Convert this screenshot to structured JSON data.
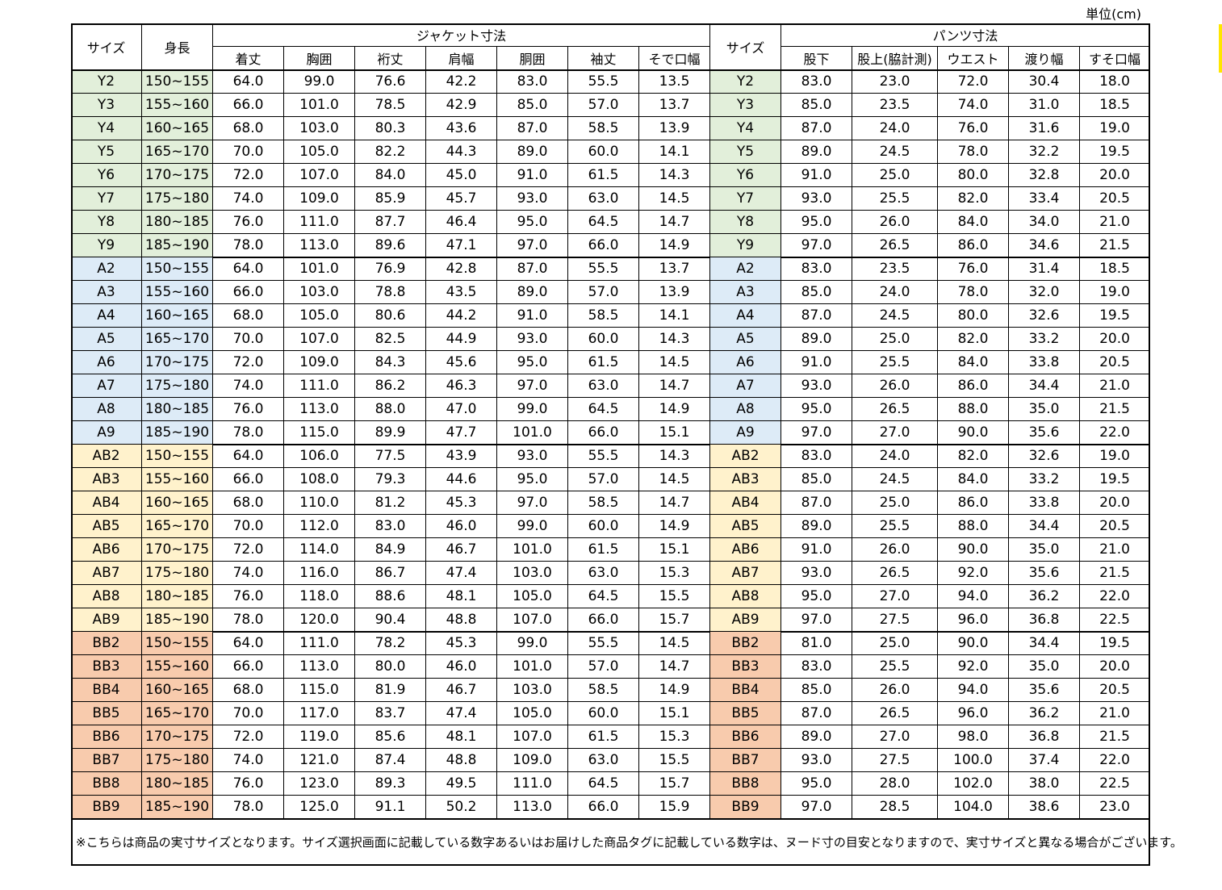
{
  "unit": "単位(cm)",
  "table": {
    "headers": {
      "size": "サイズ",
      "height": "身長",
      "jacket": "ジャケット寸法",
      "jacket_columns": [
        "着丈",
        "胸囲",
        "裄丈",
        "肩幅",
        "胴囲",
        "袖丈",
        "そで口幅"
      ],
      "size2": "サイズ",
      "pants": "パンツ寸法",
      "pants_columns": [
        "股下",
        "股上(脇計測)",
        "ウエスト",
        "渡り幅",
        "すそ口幅"
      ]
    },
    "groups": [
      {
        "color": "#e2efda",
        "rows": [
          [
            "Y2",
            "150~155",
            "64.0",
            "99.0",
            "76.6",
            "42.2",
            "83.0",
            "55.5",
            "13.5",
            "Y2",
            "83.0",
            "23.0",
            "72.0",
            "30.4",
            "18.0"
          ],
          [
            "Y3",
            "155~160",
            "66.0",
            "101.0",
            "78.5",
            "42.9",
            "85.0",
            "57.0",
            "13.7",
            "Y3",
            "85.0",
            "23.5",
            "74.0",
            "31.0",
            "18.5"
          ],
          [
            "Y4",
            "160~165",
            "68.0",
            "103.0",
            "80.3",
            "43.6",
            "87.0",
            "58.5",
            "13.9",
            "Y4",
            "87.0",
            "24.0",
            "76.0",
            "31.6",
            "19.0"
          ],
          [
            "Y5",
            "165~170",
            "70.0",
            "105.0",
            "82.2",
            "44.3",
            "89.0",
            "60.0",
            "14.1",
            "Y5",
            "89.0",
            "24.5",
            "78.0",
            "32.2",
            "19.5"
          ],
          [
            "Y6",
            "170~175",
            "72.0",
            "107.0",
            "84.0",
            "45.0",
            "91.0",
            "61.5",
            "14.3",
            "Y6",
            "91.0",
            "25.0",
            "80.0",
            "32.8",
            "20.0"
          ],
          [
            "Y7",
            "175~180",
            "74.0",
            "109.0",
            "85.9",
            "45.7",
            "93.0",
            "63.0",
            "14.5",
            "Y7",
            "93.0",
            "25.5",
            "82.0",
            "33.4",
            "20.5"
          ],
          [
            "Y8",
            "180~185",
            "76.0",
            "111.0",
            "87.7",
            "46.4",
            "95.0",
            "64.5",
            "14.7",
            "Y8",
            "95.0",
            "26.0",
            "84.0",
            "34.0",
            "21.0"
          ],
          [
            "Y9",
            "185~190",
            "78.0",
            "113.0",
            "89.6",
            "47.1",
            "97.0",
            "66.0",
            "14.9",
            "Y9",
            "97.0",
            "26.5",
            "86.0",
            "34.6",
            "21.5"
          ]
        ]
      },
      {
        "color": "#ddebf7",
        "rows": [
          [
            "A2",
            "150~155",
            "64.0",
            "101.0",
            "76.9",
            "42.8",
            "87.0",
            "55.5",
            "13.7",
            "A2",
            "83.0",
            "23.5",
            "76.0",
            "31.4",
            "18.5"
          ],
          [
            "A3",
            "155~160",
            "66.0",
            "103.0",
            "78.8",
            "43.5",
            "89.0",
            "57.0",
            "13.9",
            "A3",
            "85.0",
            "24.0",
            "78.0",
            "32.0",
            "19.0"
          ],
          [
            "A4",
            "160~165",
            "68.0",
            "105.0",
            "80.6",
            "44.2",
            "91.0",
            "58.5",
            "14.1",
            "A4",
            "87.0",
            "24.5",
            "80.0",
            "32.6",
            "19.5"
          ],
          [
            "A5",
            "165~170",
            "70.0",
            "107.0",
            "82.5",
            "44.9",
            "93.0",
            "60.0",
            "14.3",
            "A5",
            "89.0",
            "25.0",
            "82.0",
            "33.2",
            "20.0"
          ],
          [
            "A6",
            "170~175",
            "72.0",
            "109.0",
            "84.3",
            "45.6",
            "95.0",
            "61.5",
            "14.5",
            "A6",
            "91.0",
            "25.5",
            "84.0",
            "33.8",
            "20.5"
          ],
          [
            "A7",
            "175~180",
            "74.0",
            "111.0",
            "86.2",
            "46.3",
            "97.0",
            "63.0",
            "14.7",
            "A7",
            "93.0",
            "26.0",
            "86.0",
            "34.4",
            "21.0"
          ],
          [
            "A8",
            "180~185",
            "76.0",
            "113.0",
            "88.0",
            "47.0",
            "99.0",
            "64.5",
            "14.9",
            "A8",
            "95.0",
            "26.5",
            "88.0",
            "35.0",
            "21.5"
          ],
          [
            "A9",
            "185~190",
            "78.0",
            "115.0",
            "89.9",
            "47.7",
            "101.0",
            "66.0",
            "15.1",
            "A9",
            "97.0",
            "27.0",
            "90.0",
            "35.6",
            "22.0"
          ]
        ]
      },
      {
        "color": "#fff2cc",
        "rows": [
          [
            "AB2",
            "150~155",
            "64.0",
            "106.0",
            "77.5",
            "43.9",
            "93.0",
            "55.5",
            "14.3",
            "AB2",
            "83.0",
            "24.0",
            "82.0",
            "32.6",
            "19.0"
          ],
          [
            "AB3",
            "155~160",
            "66.0",
            "108.0",
            "79.3",
            "44.6",
            "95.0",
            "57.0",
            "14.5",
            "AB3",
            "85.0",
            "24.5",
            "84.0",
            "33.2",
            "19.5"
          ],
          [
            "AB4",
            "160~165",
            "68.0",
            "110.0",
            "81.2",
            "45.3",
            "97.0",
            "58.5",
            "14.7",
            "AB4",
            "87.0",
            "25.0",
            "86.0",
            "33.8",
            "20.0"
          ],
          [
            "AB5",
            "165~170",
            "70.0",
            "112.0",
            "83.0",
            "46.0",
            "99.0",
            "60.0",
            "14.9",
            "AB5",
            "89.0",
            "25.5",
            "88.0",
            "34.4",
            "20.5"
          ],
          [
            "AB6",
            "170~175",
            "72.0",
            "114.0",
            "84.9",
            "46.7",
            "101.0",
            "61.5",
            "15.1",
            "AB6",
            "91.0",
            "26.0",
            "90.0",
            "35.0",
            "21.0"
          ],
          [
            "AB7",
            "175~180",
            "74.0",
            "116.0",
            "86.7",
            "47.4",
            "103.0",
            "63.0",
            "15.3",
            "AB7",
            "93.0",
            "26.5",
            "92.0",
            "35.6",
            "21.5"
          ],
          [
            "AB8",
            "180~185",
            "76.0",
            "118.0",
            "88.6",
            "48.1",
            "105.0",
            "64.5",
            "15.5",
            "AB8",
            "95.0",
            "27.0",
            "94.0",
            "36.2",
            "22.0"
          ],
          [
            "AB9",
            "185~190",
            "78.0",
            "120.0",
            "90.4",
            "48.8",
            "107.0",
            "66.0",
            "15.7",
            "AB9",
            "97.0",
            "27.5",
            "96.0",
            "36.8",
            "22.5"
          ]
        ]
      },
      {
        "color": "#f8cbad",
        "rows": [
          [
            "BB2",
            "150~155",
            "64.0",
            "111.0",
            "78.2",
            "45.3",
            "99.0",
            "55.5",
            "14.5",
            "BB2",
            "81.0",
            "25.0",
            "90.0",
            "34.4",
            "19.5"
          ],
          [
            "BB3",
            "155~160",
            "66.0",
            "113.0",
            "80.0",
            "46.0",
            "101.0",
            "57.0",
            "14.7",
            "BB3",
            "83.0",
            "25.5",
            "92.0",
            "35.0",
            "20.0"
          ],
          [
            "BB4",
            "160~165",
            "68.0",
            "115.0",
            "81.9",
            "46.7",
            "103.0",
            "58.5",
            "14.9",
            "BB4",
            "85.0",
            "26.0",
            "94.0",
            "35.6",
            "20.5"
          ],
          [
            "BB5",
            "165~170",
            "70.0",
            "117.0",
            "83.7",
            "47.4",
            "105.0",
            "60.0",
            "15.1",
            "BB5",
            "87.0",
            "26.5",
            "96.0",
            "36.2",
            "21.0"
          ],
          [
            "BB6",
            "170~175",
            "72.0",
            "119.0",
            "85.6",
            "48.1",
            "107.0",
            "61.5",
            "15.3",
            "BB6",
            "89.0",
            "27.0",
            "98.0",
            "36.8",
            "21.5"
          ],
          [
            "BB7",
            "175~180",
            "74.0",
            "121.0",
            "87.4",
            "48.8",
            "109.0",
            "63.0",
            "15.5",
            "BB7",
            "93.0",
            "27.5",
            "100.0",
            "37.4",
            "22.0"
          ],
          [
            "BB8",
            "180~185",
            "76.0",
            "123.0",
            "89.3",
            "49.5",
            "111.0",
            "64.5",
            "15.7",
            "BB8",
            "95.0",
            "28.0",
            "102.0",
            "38.0",
            "22.5"
          ],
          [
            "BB9",
            "185~190",
            "78.0",
            "125.0",
            "91.1",
            "50.2",
            "113.0",
            "66.0",
            "15.9",
            "BB9",
            "97.0",
            "28.5",
            "104.0",
            "38.6",
            "23.0"
          ]
        ]
      }
    ]
  },
  "note": "※こちらは商品の実寸サイズとなります。サイズ選択画面に記載している数字あるいはお届けした商品タグに記載している数字は、ヌード寸の目安となりますので、実寸サイズと異なる場合がございます。"
}
